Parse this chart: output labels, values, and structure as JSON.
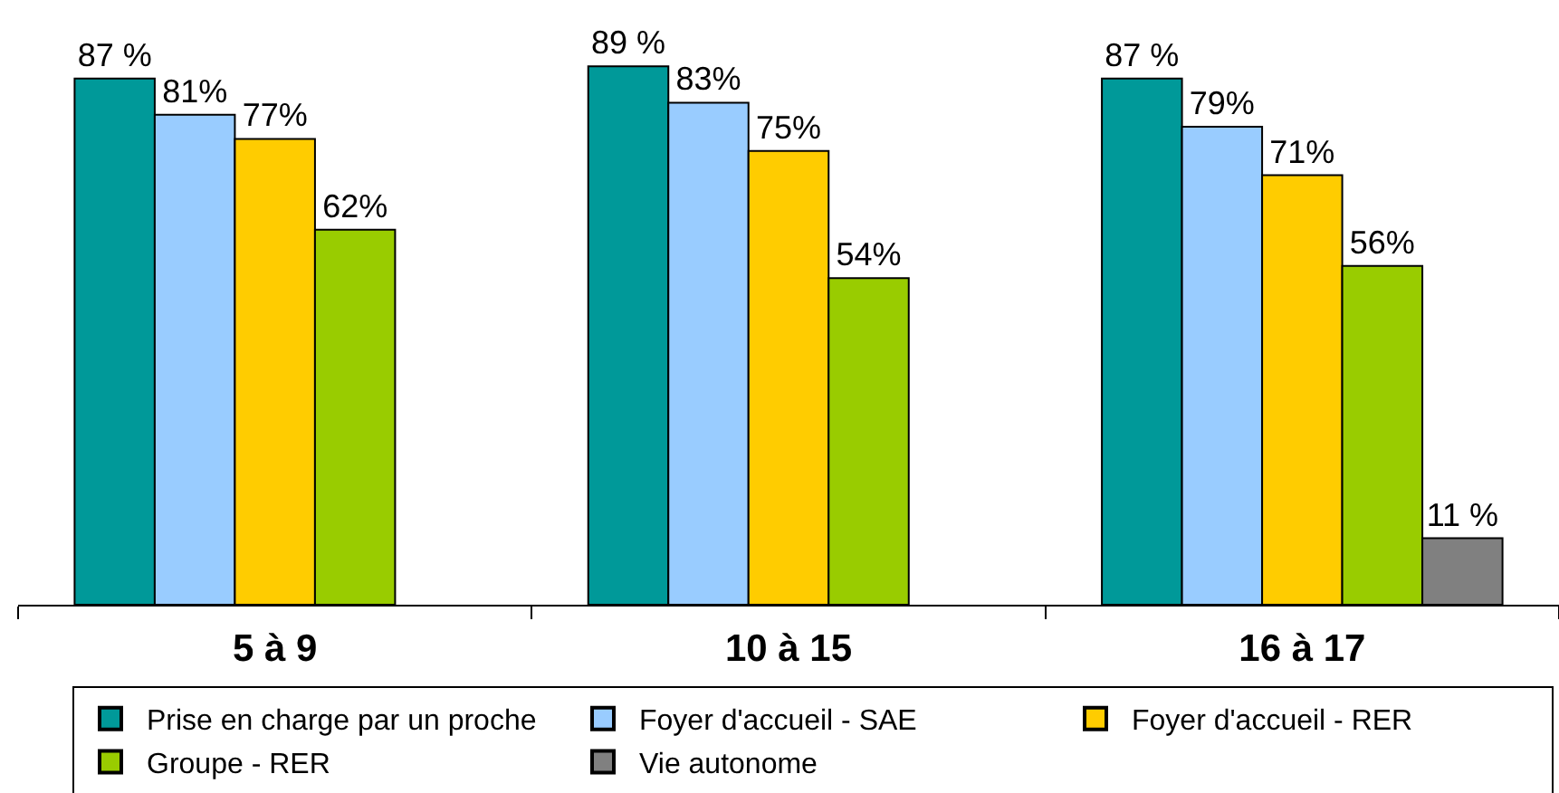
{
  "chart_data": {
    "type": "bar",
    "categories": [
      "5 à 9",
      "10 à 15",
      "16 à 17"
    ],
    "series": [
      {
        "name": "Prise en charge par un proche",
        "color": "#009999",
        "values": [
          87,
          89,
          87
        ],
        "value_labels": [
          "87 %",
          "89 %",
          "87 %"
        ]
      },
      {
        "name": "Foyer d'accueil - SAE",
        "color": "#99ccff",
        "values": [
          81,
          83,
          79
        ],
        "value_labels": [
          "81%",
          "83%",
          "79%"
        ]
      },
      {
        "name": "Foyer d'accueil - RER",
        "color": "#ffcc00",
        "values": [
          77,
          75,
          71
        ],
        "value_labels": [
          "77%",
          "75%",
          "71%"
        ]
      },
      {
        "name": "Groupe - RER",
        "color": "#99cc00",
        "values": [
          62,
          54,
          56
        ],
        "value_labels": [
          "62%",
          "54%",
          "56%"
        ]
      },
      {
        "name": "Vie autonome",
        "color": "#808080",
        "values": [
          null,
          null,
          11
        ],
        "value_labels": [
          null,
          null,
          "11 %"
        ]
      }
    ],
    "tick_labels": "x",
    "legend": "bottom"
  }
}
